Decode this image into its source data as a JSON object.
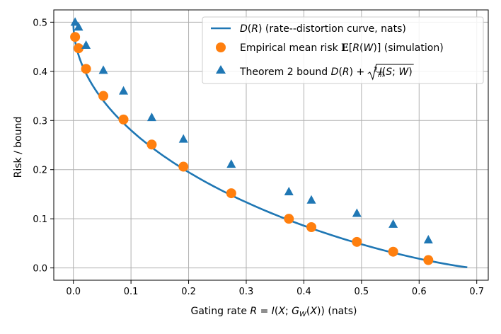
{
  "chart_data": {
    "type": "line",
    "title": "",
    "xlabel": "Gating rate R = I(X; G_W(X)) (nats)",
    "ylabel": "Risk / bound",
    "xlim": [
      -0.034,
      0.72
    ],
    "ylim": [
      -0.025,
      0.525
    ],
    "xticks": [
      0.0,
      0.1,
      0.2,
      0.3,
      0.4,
      0.5,
      0.6,
      0.7
    ],
    "xtick_labels": [
      "0.0",
      "0.1",
      "0.2",
      "0.3",
      "0.4",
      "0.5",
      "0.6",
      "0.7"
    ],
    "yticks": [
      0.0,
      0.1,
      0.2,
      0.3,
      0.4,
      0.5
    ],
    "ytick_labels": [
      "0.0",
      "0.1",
      "0.2",
      "0.3",
      "0.4",
      "0.5"
    ],
    "grid": true,
    "legend_position": "top-right",
    "curve": {
      "name": "D(R) (rate--distortion curve, nats)",
      "x_max": 0.6852,
      "color": "#1f77b4"
    },
    "series": [
      {
        "name": "Empirical mean risk E[R(W)] (simulation)",
        "marker": "circle",
        "color": "#ff7f0e",
        "x": [
          0.003,
          0.009,
          0.022,
          0.052,
          0.087,
          0.136,
          0.191,
          0.274,
          0.374,
          0.413,
          0.492,
          0.555,
          0.616
        ],
        "y": [
          0.47,
          0.447,
          0.405,
          0.35,
          0.302,
          0.251,
          0.206,
          0.152,
          0.1,
          0.083,
          0.053,
          0.033,
          0.016
        ]
      },
      {
        "name": "Theorem 2 bound D(R) + sqrt(2/m I(S; W))",
        "marker": "triangle",
        "color": "#1f77b4",
        "x": [
          0.003,
          0.009,
          0.022,
          0.052,
          0.087,
          0.136,
          0.191,
          0.274,
          0.374,
          0.413,
          0.492,
          0.555,
          0.616
        ],
        "y": [
          0.5,
          0.49,
          0.453,
          0.402,
          0.36,
          0.306,
          0.262,
          0.211,
          0.155,
          0.138,
          0.111,
          0.089,
          0.057
        ]
      }
    ],
    "legend": [
      {
        "label": "D(R) (rate--distortion curve, nats)"
      },
      {
        "label": "Empirical mean risk E[R(W)] (simulation)"
      },
      {
        "label": "Theorem 2 bound D(R) + sqrt(2/m I(S; W))"
      }
    ]
  }
}
